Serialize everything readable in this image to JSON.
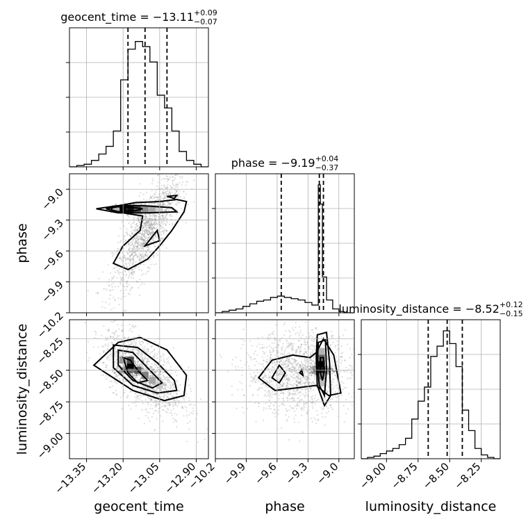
{
  "chart_data": {
    "type": "corner",
    "parameters": [
      {
        "name": "geocent_time",
        "range": [
          -13.42,
          -12.85
        ],
        "ticks": [
          -13.35,
          -13.2,
          -13.05,
          -12.9
        ],
        "tick_labels": [
          "−13.35",
          "−13.20",
          "−13.05",
          "−12.90"
        ],
        "median": "−13.11",
        "plus": "+0.09",
        "minus": "−0.07",
        "quantiles": [
          -13.18,
          -13.11,
          -13.02
        ]
      },
      {
        "name": "phase",
        "range": [
          -10.2,
          -8.85
        ],
        "ticks": [
          -10.2,
          -9.9,
          -9.6,
          -9.3,
          -9.0
        ],
        "tick_labels": [
          "−10.2",
          "−9.9",
          "−9.6",
          "−9.3",
          "−9.0"
        ],
        "median": "−9.19",
        "plus": "+0.04",
        "minus": "−0.37",
        "quantiles": [
          -9.56,
          -9.19,
          -9.15
        ]
      },
      {
        "name": "luminosity_distance",
        "range": [
          -9.2,
          -8.1
        ],
        "ticks": [
          -9.0,
          -8.75,
          -8.5,
          -8.25
        ],
        "tick_labels": [
          "−9.00",
          "−8.75",
          "−8.50",
          "−8.25"
        ],
        "left_tick_labels": [
          "−8.25",
          "−8.50",
          "−8.75",
          "−9.00"
        ],
        "median": "−8.52",
        "plus": "+0.12",
        "minus": "−0.15",
        "quantiles": [
          -8.67,
          -8.52,
          -8.4
        ]
      }
    ],
    "histograms": [
      {
        "param": "geocent_time",
        "edges": [
          -13.42,
          -13.39,
          -13.36,
          -13.33,
          -13.3,
          -13.27,
          -13.24,
          -13.21,
          -13.18,
          -13.15,
          -13.12,
          -13.09,
          -13.06,
          -13.03,
          -13.0,
          -12.97,
          -12.94,
          -12.91,
          -12.88,
          -12.85
        ],
        "counts": [
          0,
          0.01,
          0.02,
          0.05,
          0.1,
          0.16,
          0.28,
          0.68,
          0.92,
          0.98,
          0.94,
          0.82,
          0.56,
          0.46,
          0.28,
          0.12,
          0.05,
          0.02,
          0
        ]
      },
      {
        "param": "phase",
        "edges": [
          -10.2,
          -10.133,
          -10.066,
          -9.999,
          -9.932,
          -9.865,
          -9.798,
          -9.731,
          -9.664,
          -9.597,
          -9.53,
          -9.463,
          -9.396,
          -9.329,
          -9.262,
          -9.2,
          -9.18,
          -9.16,
          -9.12,
          -9.06,
          -9.0,
          -8.95,
          -8.85
        ],
        "counts": [
          0,
          0.01,
          0.02,
          0.03,
          0.05,
          0.07,
          0.09,
          0.1,
          0.12,
          0.13,
          0.12,
          0.11,
          0.1,
          0.08,
          0.06,
          1.0,
          0.85,
          0.28,
          0.1,
          0.03,
          0.01,
          0
        ]
      },
      {
        "param": "luminosity_distance",
        "edges": [
          -9.2,
          -9.15,
          -9.1,
          -9.05,
          -9.0,
          -8.95,
          -8.9,
          -8.85,
          -8.8,
          -8.75,
          -8.7,
          -8.65,
          -8.6,
          -8.55,
          -8.5,
          -8.45,
          -8.4,
          -8.35,
          -8.3,
          -8.25,
          -8.2,
          -8.15,
          -8.1
        ],
        "counts": [
          0,
          0.01,
          0.02,
          0.04,
          0.06,
          0.08,
          0.11,
          0.16,
          0.31,
          0.45,
          0.56,
          0.8,
          0.88,
          1.0,
          0.9,
          0.72,
          0.38,
          0.22,
          0.08,
          0.03,
          0.01,
          0
        ]
      }
    ],
    "panels": [
      {
        "x": "geocent_time",
        "y": "phase",
        "center": [
          -13.17,
          -9.19
        ],
        "contours": [
          [
            [
              -13.27,
              -9.19
            ],
            [
              -13.22,
              -9.17
            ],
            [
              -13.15,
              -9.18
            ],
            [
              -13.12,
              -9.19
            ],
            [
              -13.15,
              -9.21
            ],
            [
              -13.22,
              -9.22
            ],
            [
              -13.27,
              -9.19
            ]
          ],
          [
            [
              -13.31,
              -9.19
            ],
            [
              -13.22,
              -9.16
            ],
            [
              -13.12,
              -9.16
            ],
            [
              -13.0,
              -9.18
            ],
            [
              -12.98,
              -9.22
            ],
            [
              -13.1,
              -9.23
            ],
            [
              -13.22,
              -9.23
            ],
            [
              -13.31,
              -9.19
            ]
          ],
          [
            [
              -13.24,
              -9.17
            ],
            [
              -13.15,
              -9.13
            ],
            [
              -13.05,
              -9.12
            ],
            [
              -12.98,
              -9.1
            ],
            [
              -12.94,
              -9.12
            ],
            [
              -12.95,
              -9.22
            ],
            [
              -13.0,
              -9.4
            ],
            [
              -13.05,
              -9.55
            ],
            [
              -13.1,
              -9.68
            ],
            [
              -13.18,
              -9.78
            ],
            [
              -13.24,
              -9.72
            ],
            [
              -13.2,
              -9.55
            ],
            [
              -13.13,
              -9.4
            ],
            [
              -13.12,
              -9.26
            ],
            [
              -13.2,
              -9.23
            ],
            [
              -13.25,
              -9.2
            ],
            [
              -13.24,
              -9.17
            ]
          ],
          [
            [
              -13.02,
              -9.07
            ],
            [
              -12.98,
              -9.06
            ],
            [
              -12.99,
              -9.09
            ],
            [
              -13.02,
              -9.07
            ]
          ],
          [
            [
              -13.11,
              -9.55
            ],
            [
              -13.06,
              -9.4
            ],
            [
              -13.05,
              -9.5
            ],
            [
              -13.11,
              -9.55
            ]
          ]
        ],
        "density": [
          [
            -13.2,
            -9.19,
            1.0
          ],
          [
            -13.17,
            -9.19,
            0.95
          ],
          [
            -13.14,
            -9.19,
            0.7
          ],
          [
            -13.11,
            -9.19,
            0.45
          ],
          [
            -13.08,
            -9.19,
            0.35
          ],
          [
            -13.05,
            -9.19,
            0.2
          ],
          [
            -13.23,
            -9.19,
            0.3
          ]
        ],
        "scatter": {
          "x_mean": -13.1,
          "x_sd": 0.07,
          "y_mean": -9.4,
          "y_sd": 0.28,
          "corr": 0.8
        }
      },
      {
        "x": "geocent_time",
        "y": "luminosity_distance",
        "center": [
          -13.17,
          -8.5
        ],
        "contours": [
          [
            [
              -13.2,
              -8.4
            ],
            [
              -13.17,
              -8.42
            ],
            [
              -13.14,
              -8.5
            ],
            [
              -13.1,
              -8.58
            ],
            [
              -13.14,
              -8.6
            ],
            [
              -13.18,
              -8.52
            ],
            [
              -13.2,
              -8.4
            ]
          ],
          [
            [
              -13.22,
              -8.34
            ],
            [
              -13.16,
              -8.36
            ],
            [
              -13.1,
              -8.48
            ],
            [
              -13.04,
              -8.6
            ],
            [
              -13.08,
              -8.64
            ],
            [
              -13.16,
              -8.58
            ],
            [
              -13.22,
              -8.46
            ],
            [
              -13.22,
              -8.34
            ]
          ],
          [
            [
              -13.24,
              -8.3
            ],
            [
              -13.14,
              -8.32
            ],
            [
              -13.06,
              -8.44
            ],
            [
              -12.99,
              -8.58
            ],
            [
              -12.98,
              -8.66
            ],
            [
              -13.06,
              -8.68
            ],
            [
              -13.16,
              -8.62
            ],
            [
              -13.24,
              -8.48
            ],
            [
              -13.24,
              -8.3
            ]
          ],
          [
            [
              -13.32,
              -8.46
            ],
            [
              -13.22,
              -8.28
            ],
            [
              -13.13,
              -8.24
            ],
            [
              -13.02,
              -8.34
            ],
            [
              -12.94,
              -8.54
            ],
            [
              -12.95,
              -8.7
            ],
            [
              -13.03,
              -8.74
            ],
            [
              -13.16,
              -8.66
            ],
            [
              -13.32,
              -8.46
            ]
          ]
        ],
        "density": [
          [
            -13.17,
            -8.46,
            1.0
          ],
          [
            -13.17,
            -8.42,
            0.7
          ],
          [
            -13.14,
            -8.5,
            0.65
          ],
          [
            -13.11,
            -8.54,
            0.5
          ],
          [
            -13.08,
            -8.58,
            0.35
          ],
          [
            -13.05,
            -8.62,
            0.2
          ],
          [
            -13.2,
            -8.42,
            0.4
          ]
        ],
        "scatter": {
          "x_mean": -13.12,
          "x_sd": 0.08,
          "y_mean": -8.52,
          "y_sd": 0.16,
          "corr": -0.6
        }
      },
      {
        "x": "phase",
        "y": "luminosity_distance",
        "center": [
          -9.17,
          -8.5
        ],
        "contours": [
          [
            [
              -9.18,
              -8.4
            ],
            [
              -9.15,
              -8.4
            ],
            [
              -9.14,
              -8.5
            ],
            [
              -9.16,
              -8.58
            ],
            [
              -9.18,
              -8.52
            ],
            [
              -9.18,
              -8.4
            ]
          ],
          [
            [
              -9.2,
              -8.28
            ],
            [
              -9.13,
              -8.26
            ],
            [
              -9.12,
              -8.5
            ],
            [
              -9.14,
              -8.7
            ],
            [
              -9.19,
              -8.62
            ],
            [
              -9.21,
              -8.46
            ],
            [
              -9.2,
              -8.28
            ]
          ],
          [
            [
              -9.21,
              -8.22
            ],
            [
              -9.12,
              -8.2
            ],
            [
              -9.09,
              -8.44
            ],
            [
              -9.08,
              -8.7
            ],
            [
              -9.14,
              -8.78
            ],
            [
              -9.21,
              -8.62
            ],
            [
              -9.22,
              -8.4
            ],
            [
              -9.21,
              -8.22
            ]
          ],
          [
            [
              -9.78,
              -8.56
            ],
            [
              -9.65,
              -8.42
            ],
            [
              -9.45,
              -8.38
            ],
            [
              -9.28,
              -8.4
            ],
            [
              -9.22,
              -8.36
            ],
            [
              -9.15,
              -8.25
            ],
            [
              -9.05,
              -8.38
            ],
            [
              -8.98,
              -8.68
            ],
            [
              -9.1,
              -8.7
            ],
            [
              -9.22,
              -8.62
            ],
            [
              -9.42,
              -8.64
            ],
            [
              -9.62,
              -8.66
            ],
            [
              -9.78,
              -8.56
            ]
          ],
          [
            [
              -9.65,
              -8.56
            ],
            [
              -9.58,
              -8.46
            ],
            [
              -9.52,
              -8.52
            ],
            [
              -9.58,
              -8.6
            ],
            [
              -9.65,
              -8.56
            ]
          ],
          [
            [
              -9.38,
              -8.52
            ],
            [
              -9.36,
              -8.5
            ],
            [
              -9.35,
              -8.54
            ],
            [
              -9.38,
              -8.52
            ]
          ]
        ],
        "density": [
          [
            -9.17,
            -8.45,
            1.0
          ],
          [
            -9.17,
            -8.5,
            0.9
          ],
          [
            -9.17,
            -8.4,
            0.6
          ],
          [
            -9.17,
            -8.55,
            0.5
          ],
          [
            -9.17,
            -8.35,
            0.3
          ],
          [
            -9.17,
            -8.6,
            0.25
          ]
        ],
        "scatter": {
          "x_mean": -9.4,
          "x_sd": 0.25,
          "y_mean": -8.52,
          "y_sd": 0.16,
          "corr": 0.0
        }
      }
    ]
  }
}
